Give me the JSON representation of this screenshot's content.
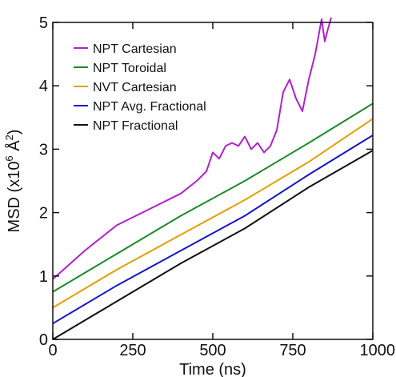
{
  "chart_data": {
    "type": "line",
    "xlabel": "Time (ns)",
    "ylabel_prefix": "MSD (x10",
    "ylabel_exp": "6",
    "ylabel_mid": " Å",
    "ylabel_exp2": "2",
    "ylabel_suffix": ")",
    "xlim": [
      0,
      1000
    ],
    "ylim": [
      0,
      5
    ],
    "x_ticks": [
      "0",
      "250",
      "500",
      "750",
      "1000"
    ],
    "y_ticks": [
      "0",
      "1",
      "2",
      "3",
      "4",
      "5"
    ],
    "legend_position": "top-left",
    "grid": false,
    "series": [
      {
        "name": "NPT Cartesian",
        "color": "#b020d0",
        "x": [
          0,
          100,
          200,
          300,
          400,
          450,
          480,
          500,
          520,
          540,
          560,
          580,
          600,
          620,
          640,
          660,
          680,
          700,
          720,
          740,
          760,
          780,
          800,
          820,
          840,
          850,
          860,
          870
        ],
        "y": [
          0.95,
          1.4,
          1.8,
          2.05,
          2.3,
          2.5,
          2.65,
          2.95,
          2.85,
          3.05,
          3.1,
          3.05,
          3.2,
          3.0,
          3.1,
          2.95,
          3.05,
          3.3,
          3.9,
          4.1,
          3.8,
          3.6,
          4.1,
          4.5,
          5.05,
          4.7,
          4.9,
          5.1
        ]
      },
      {
        "name": "NPT Toroidal",
        "color": "#1a8a2a",
        "x": [
          0,
          200,
          400,
          600,
          800,
          1000
        ],
        "y": [
          0.75,
          1.35,
          1.95,
          2.5,
          3.1,
          3.72
        ]
      },
      {
        "name": "NVT Cartesian",
        "color": "#e0a000",
        "x": [
          0,
          200,
          400,
          600,
          800,
          1000
        ],
        "y": [
          0.5,
          1.1,
          1.65,
          2.2,
          2.8,
          3.48
        ]
      },
      {
        "name": "NPT Avg. Fractional",
        "color": "#1515cc",
        "x": [
          0,
          200,
          400,
          600,
          800,
          1000
        ],
        "y": [
          0.25,
          0.85,
          1.4,
          1.95,
          2.6,
          3.22
        ]
      },
      {
        "name": "NPT Fractional",
        "color": "#111111",
        "x": [
          0,
          200,
          400,
          600,
          800,
          1000
        ],
        "y": [
          0.0,
          0.6,
          1.2,
          1.75,
          2.4,
          2.98
        ]
      }
    ]
  }
}
